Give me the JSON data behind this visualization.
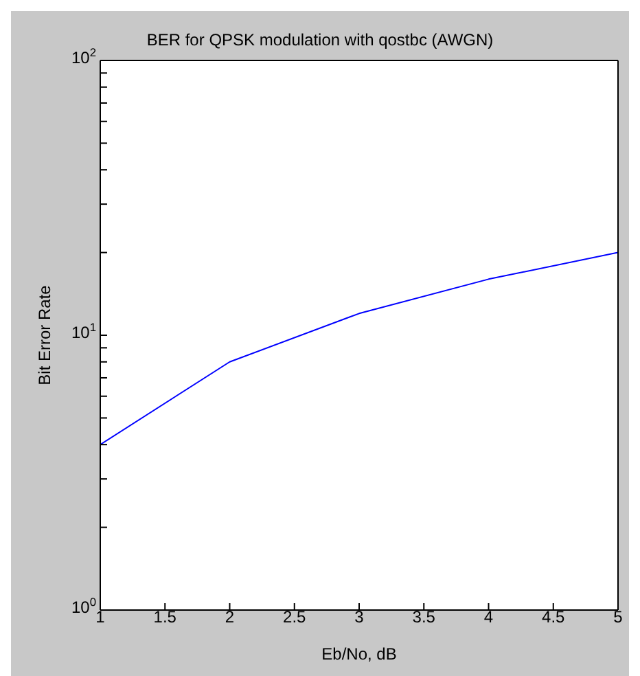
{
  "chart_data": {
    "type": "line",
    "title": "BER for QPSK modulation with qostbc (AWGN)",
    "xlabel": "Eb/No, dB",
    "ylabel": "Bit Error Rate",
    "x": [
      1,
      2,
      3,
      4,
      5
    ],
    "series": [
      {
        "color": "#0000ff",
        "values": [
          4,
          8,
          12,
          16,
          20
        ]
      }
    ],
    "xlim": [
      1,
      5
    ],
    "xticks": [
      1,
      1.5,
      2,
      2.5,
      3,
      3.5,
      4,
      4.5,
      5
    ],
    "ylim": [
      1,
      100
    ],
    "log": true,
    "yticks": [
      {
        "value": 1,
        "label": "10$^{0}$"
      },
      {
        "value": 2,
        "label": null
      },
      {
        "value": 3,
        "label": null
      },
      {
        "value": 4,
        "label": null
      },
      {
        "value": 5,
        "label": null
      },
      {
        "value": 6,
        "label": null
      },
      {
        "value": 7,
        "label": null
      },
      {
        "value": 8,
        "label": null
      },
      {
        "value": 9,
        "label": null
      },
      {
        "value": 10,
        "label": "10$^{1}$"
      },
      {
        "value": 20,
        "label": null
      },
      {
        "value": 30,
        "label": null
      },
      {
        "value": 40,
        "label": null
      },
      {
        "value": 50,
        "label": null
      },
      {
        "value": 60,
        "label": null
      },
      {
        "value": 70,
        "label": null
      },
      {
        "value": 80,
        "label": null
      },
      {
        "value": 90,
        "label": null
      },
      {
        "value": 100,
        "label": "10$^{2}$"
      }
    ],
    "grid": false,
    "legend": false,
    "marker": "none",
    "line_style": "solid"
  }
}
